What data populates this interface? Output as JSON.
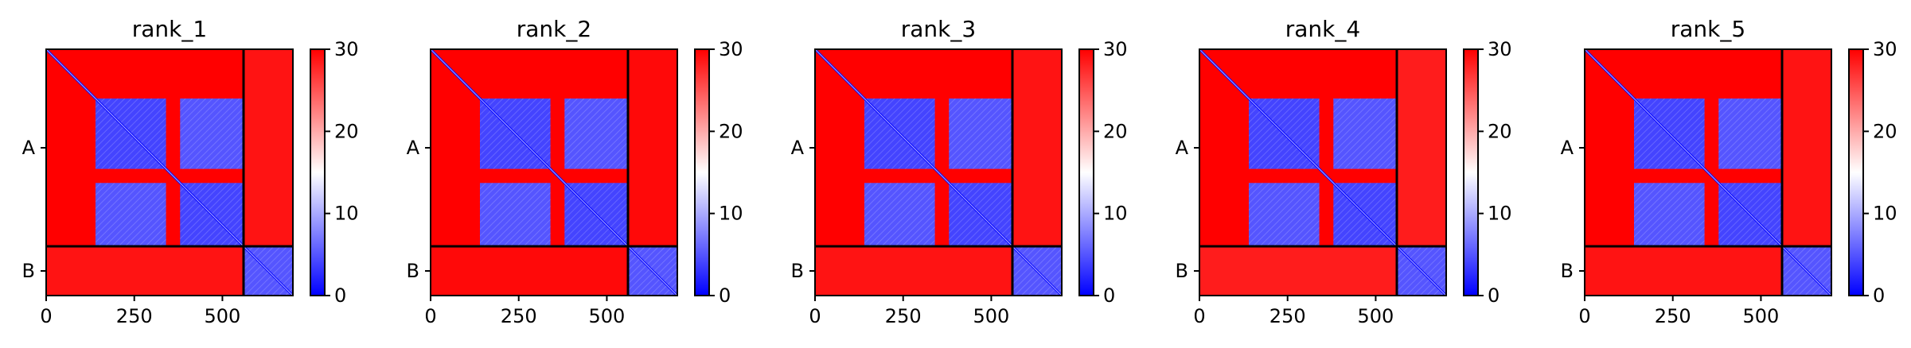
{
  "figure": {
    "colors": {
      "low": "#0000ff",
      "mid": "#ffffff",
      "high": "#ff0000",
      "divider": "#000000"
    }
  },
  "chart_data": [
    {
      "type": "heatmap",
      "title": "rank_1",
      "x": {
        "lim": [
          0,
          700
        ],
        "ticks": [
          0,
          250,
          500
        ],
        "tick_labels": [
          "0",
          "250",
          "500"
        ]
      },
      "y_chains": [
        {
          "label": "A",
          "start": 0,
          "end": 560
        },
        {
          "label": "B",
          "start": 560,
          "end": 700
        }
      ],
      "chain_boundary": 560,
      "colorbar": {
        "lim": [
          0,
          30
        ],
        "ticks": [
          0,
          10,
          20,
          30
        ],
        "tick_labels": [
          "0",
          "10",
          "20",
          "30"
        ]
      },
      "blocks": [
        {
          "range": [
            140,
            340
          ],
          "pae": 4
        },
        {
          "range": [
            380,
            560
          ],
          "pae": 4
        },
        {
          "range": [
            560,
            700
          ],
          "pae": 5
        }
      ],
      "interface_pae": 28,
      "default_pae": 30
    },
    {
      "type": "heatmap",
      "title": "rank_2",
      "x": {
        "lim": [
          0,
          700
        ],
        "ticks": [
          0,
          250,
          500
        ],
        "tick_labels": [
          "0",
          "250",
          "500"
        ]
      },
      "y_chains": [
        {
          "label": "A",
          "start": 0,
          "end": 560
        },
        {
          "label": "B",
          "start": 560,
          "end": 700
        }
      ],
      "chain_boundary": 560,
      "colorbar": {
        "lim": [
          0,
          30
        ],
        "ticks": [
          0,
          10,
          20,
          30
        ],
        "tick_labels": [
          "0",
          "10",
          "20",
          "30"
        ]
      },
      "blocks": [
        {
          "range": [
            140,
            340
          ],
          "pae": 4
        },
        {
          "range": [
            380,
            560
          ],
          "pae": 4
        },
        {
          "range": [
            560,
            700
          ],
          "pae": 5
        }
      ],
      "interface_pae": 29,
      "default_pae": 30
    },
    {
      "type": "heatmap",
      "title": "rank_3",
      "x": {
        "lim": [
          0,
          700
        ],
        "ticks": [
          0,
          250,
          500
        ],
        "tick_labels": [
          "0",
          "250",
          "500"
        ]
      },
      "y_chains": [
        {
          "label": "A",
          "start": 0,
          "end": 560
        },
        {
          "label": "B",
          "start": 560,
          "end": 700
        }
      ],
      "chain_boundary": 560,
      "colorbar": {
        "lim": [
          0,
          30
        ],
        "ticks": [
          0,
          10,
          20,
          30
        ],
        "tick_labels": [
          "0",
          "10",
          "20",
          "30"
        ]
      },
      "blocks": [
        {
          "range": [
            140,
            340
          ],
          "pae": 4
        },
        {
          "range": [
            380,
            560
          ],
          "pae": 4
        },
        {
          "range": [
            560,
            700
          ],
          "pae": 5
        }
      ],
      "interface_pae": 28,
      "default_pae": 30
    },
    {
      "type": "heatmap",
      "title": "rank_4",
      "x": {
        "lim": [
          0,
          700
        ],
        "ticks": [
          0,
          250,
          500
        ],
        "tick_labels": [
          "0",
          "250",
          "500"
        ]
      },
      "y_chains": [
        {
          "label": "A",
          "start": 0,
          "end": 560
        },
        {
          "label": "B",
          "start": 560,
          "end": 700
        }
      ],
      "chain_boundary": 560,
      "colorbar": {
        "lim": [
          0,
          30
        ],
        "ticks": [
          0,
          10,
          20,
          30
        ],
        "tick_labels": [
          "0",
          "10",
          "20",
          "30"
        ]
      },
      "blocks": [
        {
          "range": [
            140,
            340
          ],
          "pae": 4
        },
        {
          "range": [
            380,
            560
          ],
          "pae": 4
        },
        {
          "range": [
            560,
            700
          ],
          "pae": 5
        }
      ],
      "interface_pae": 27,
      "default_pae": 30
    },
    {
      "type": "heatmap",
      "title": "rank_5",
      "x": {
        "lim": [
          0,
          700
        ],
        "ticks": [
          0,
          250,
          500
        ],
        "tick_labels": [
          "0",
          "250",
          "500"
        ]
      },
      "y_chains": [
        {
          "label": "A",
          "start": 0,
          "end": 560
        },
        {
          "label": "B",
          "start": 560,
          "end": 700
        }
      ],
      "chain_boundary": 560,
      "colorbar": {
        "lim": [
          0,
          30
        ],
        "ticks": [
          0,
          10,
          20,
          30
        ],
        "tick_labels": [
          "0",
          "10",
          "20",
          "30"
        ]
      },
      "blocks": [
        {
          "range": [
            140,
            340
          ],
          "pae": 4
        },
        {
          "range": [
            380,
            560
          ],
          "pae": 4
        },
        {
          "range": [
            560,
            700
          ],
          "pae": 5
        }
      ],
      "interface_pae": 28,
      "default_pae": 30
    }
  ]
}
